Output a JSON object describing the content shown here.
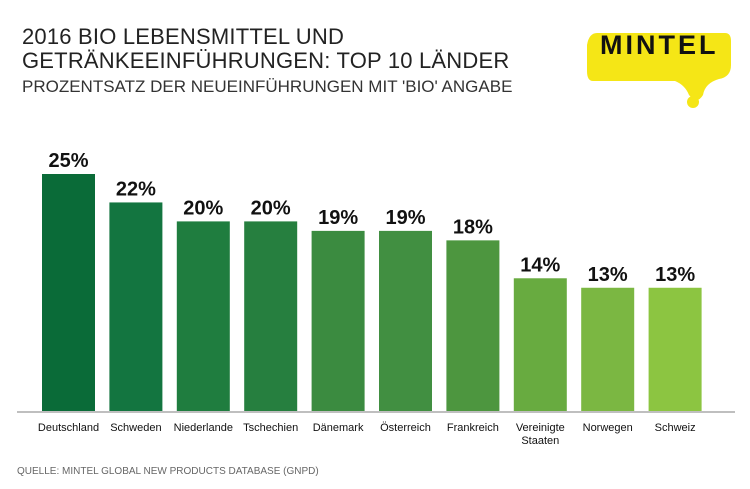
{
  "header": {
    "title_line1": "2016 BIO LEBENSMITTEL UND",
    "title_line2": "GETRÄNKEEINFÜHRUNGEN: TOP 10 LÄNDER",
    "subtitle": "PROZENTSATZ DER NEUEINFÜHRUNGEN MIT 'BIO' ANGABE"
  },
  "logo": {
    "text": "MINTEL",
    "color": "#f5e616"
  },
  "source": "QUELLE: MINTEL GLOBAL NEW PRODUCTS DATABASE (GNPD)",
  "chart_data": {
    "type": "bar",
    "categories": [
      "Deutschland",
      "Schweden",
      "Niederlande",
      "Tschechien",
      "Dänemark",
      "Österreich",
      "Frankreich",
      "Vereinigte Staaten",
      "Norwegen",
      "Schweiz"
    ],
    "values": [
      25,
      22,
      20,
      20,
      19,
      19,
      18,
      14,
      13,
      13
    ],
    "data_labels": [
      "25%",
      "22%",
      "20%",
      "20%",
      "19%",
      "19%",
      "18%",
      "14%",
      "13%",
      "13%"
    ],
    "unit": "%",
    "ylim": [
      0,
      25
    ],
    "grid": false,
    "colors": [
      "#0a6b38",
      "#137540",
      "#1f7d3f",
      "#267f3f",
      "#3b8b40",
      "#418f41",
      "#4d963f",
      "#68ab40",
      "#7bb742",
      "#8cc541"
    ]
  }
}
